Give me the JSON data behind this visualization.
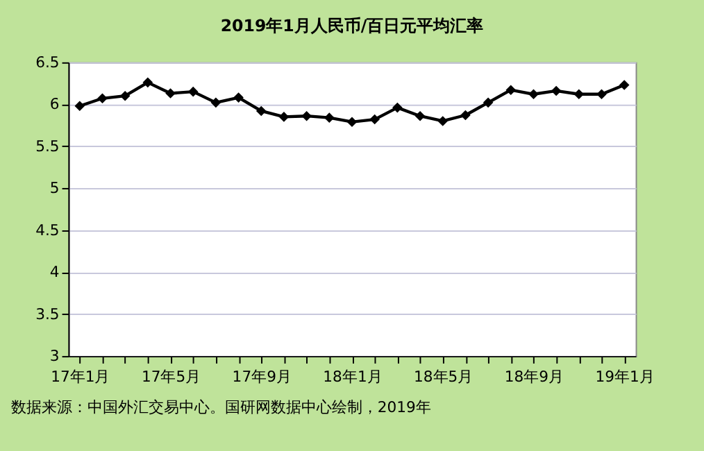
{
  "chart_data": {
    "type": "line",
    "title": "2019年1月人民币/百日元平均汇率",
    "categories": [
      "17年1月",
      null,
      null,
      null,
      "17年5月",
      null,
      null,
      null,
      "17年9月",
      null,
      null,
      null,
      "18年1月",
      null,
      null,
      null,
      "18年5月",
      null,
      null,
      null,
      "18年9月",
      null,
      null,
      null,
      "19年1月"
    ],
    "series": [
      {
        "color": "#000000",
        "values": [
          5.98,
          6.07,
          6.1,
          6.26,
          6.13,
          6.15,
          6.02,
          6.08,
          5.92,
          5.85,
          5.86,
          5.84,
          5.79,
          5.82,
          5.96,
          5.86,
          5.8,
          5.87,
          6.02,
          6.17,
          6.12,
          6.16,
          6.12,
          6.12,
          6.23
        ]
      }
    ],
    "ylim": [
      3,
      6.5
    ],
    "yticks": [
      3,
      3.5,
      4,
      4.5,
      5,
      5.5,
      6,
      6.5
    ],
    "grid": "y",
    "marker": "diamond",
    "line_style": "solid",
    "annotations": [
      "数据来源：中国外汇交易中心。国研网数据中心绘制，2019年"
    ]
  }
}
